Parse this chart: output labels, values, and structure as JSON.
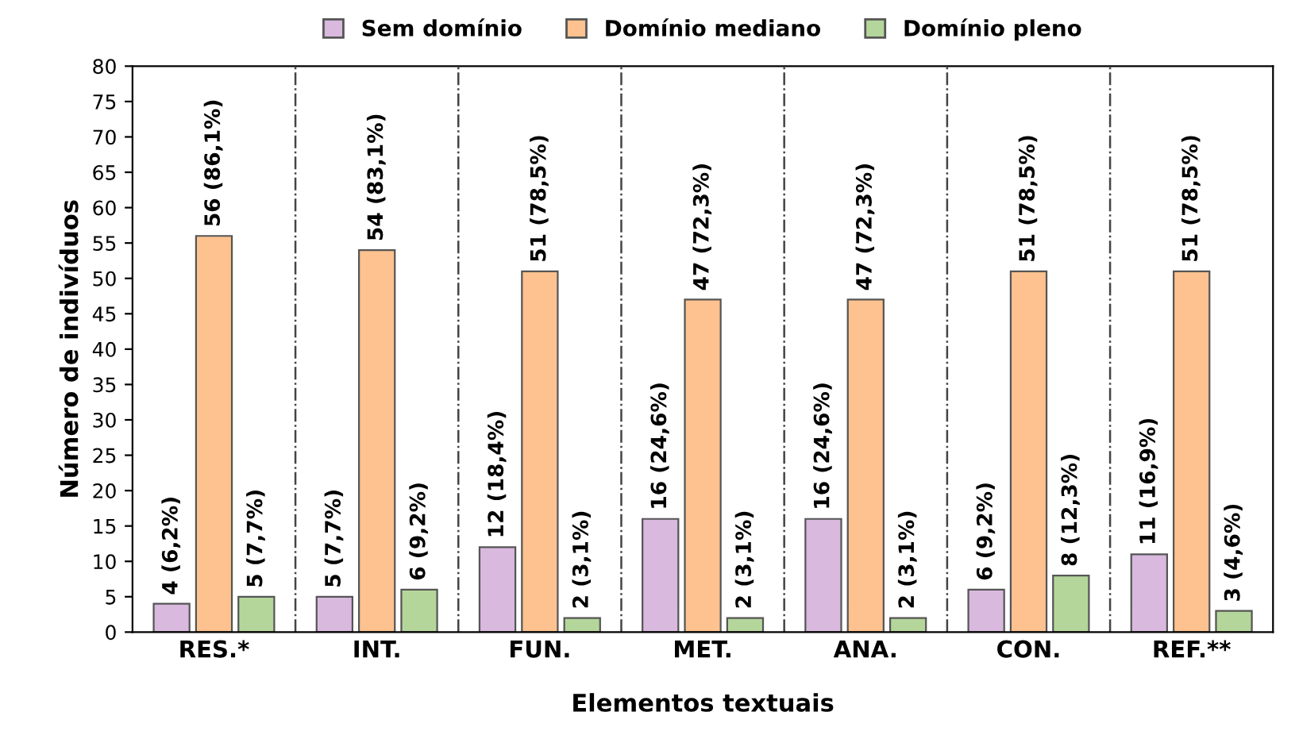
{
  "chart_data": {
    "type": "bar",
    "xlabel": "Elementos textuais",
    "ylabel": "Número de indivíduos",
    "categories": [
      "RES.*",
      "INT.",
      "FUN.",
      "MET.",
      "ANA.",
      "CON.",
      "REF.**"
    ],
    "series": [
      {
        "name": "Sem domínio",
        "color": "#d9b9de",
        "values": [
          4,
          5,
          12,
          16,
          16,
          6,
          11
        ],
        "value_labels": [
          "4 (6,2%)",
          "5 (7,7%)",
          "12 (18,4%)",
          "16 (24,6%)",
          "16 (24,6%)",
          "6 (9,2%)",
          "11 (16,9%)"
        ]
      },
      {
        "name": "Domínio mediano",
        "color": "#fdc28f",
        "values": [
          56,
          54,
          51,
          47,
          47,
          51,
          51
        ],
        "value_labels": [
          "56 (86,1%)",
          "54 (83,1%)",
          "51 (78,5%)",
          "47 (72,3%)",
          "47 (72,3%)",
          "51 (78,5%)",
          "51 (78,5%)"
        ]
      },
      {
        "name": "Domínio pleno",
        "color": "#b5d69b",
        "values": [
          5,
          6,
          2,
          2,
          2,
          8,
          3
        ],
        "value_labels": [
          "5 (7,7%)",
          "6 (9,2%)",
          "2 (3,1%)",
          "2 (3,1%)",
          "2 (3,1%)",
          "8 (12,3%)",
          "3 (4,6%)"
        ]
      }
    ],
    "ylim": [
      0,
      80
    ],
    "yticks": [
      0,
      5,
      10,
      15,
      20,
      25,
      30,
      35,
      40,
      45,
      50,
      55,
      60,
      65,
      70,
      75,
      80
    ],
    "grid": "x",
    "legend": "top"
  }
}
